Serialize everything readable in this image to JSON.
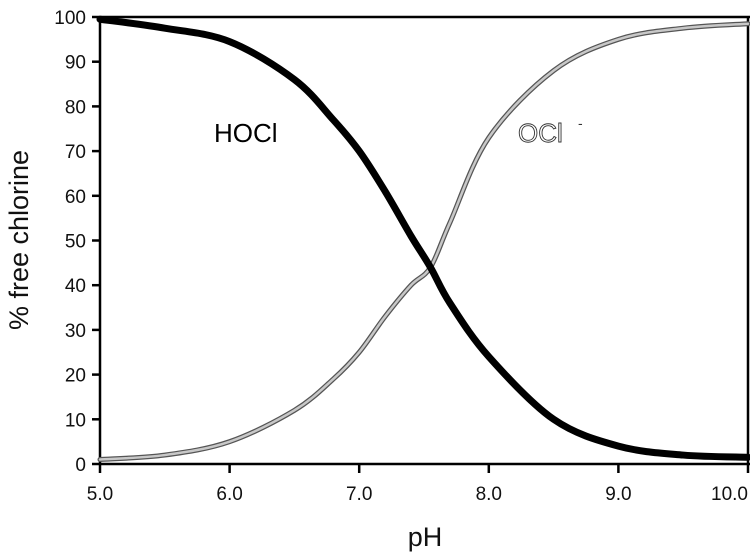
{
  "chart_data": {
    "type": "line",
    "title": "",
    "xlabel": "pH",
    "ylabel": "% free chlorine",
    "xlim": [
      5.0,
      10.0
    ],
    "ylim": [
      0,
      100
    ],
    "grid": false,
    "legend_position": "none (inline annotations)",
    "x_ticks": [
      "5.0",
      "6.0",
      "7.0",
      "8.0",
      "9.0",
      "10.0"
    ],
    "y_ticks": [
      "0",
      "10",
      "20",
      "30",
      "40",
      "50",
      "60",
      "70",
      "80",
      "90",
      "100"
    ],
    "annotations": [
      {
        "text": "HOCl",
        "x": 6.1,
        "y": 74,
        "color": "#000000"
      },
      {
        "text": "OCl",
        "superscript": "-",
        "x": 8.45,
        "y": 74,
        "color": "#555555"
      }
    ],
    "x": [
      5.0,
      5.5,
      6.0,
      6.5,
      6.8,
      7.0,
      7.2,
      7.4,
      7.55,
      7.7,
      8.0,
      8.5,
      9.0,
      9.5,
      10.0
    ],
    "series": [
      {
        "name": "HOCl",
        "color": "#000000",
        "style": "thick solid black",
        "values": [
          99.5,
          97.5,
          94.5,
          86,
          77,
          70,
          61,
          51,
          44,
          36,
          24,
          10,
          4,
          2,
          1.5
        ]
      },
      {
        "name": "OCl-",
        "color": "#999999",
        "style": "gray double-outline",
        "values": [
          1,
          2,
          5,
          12,
          19,
          25,
          33,
          40,
          44,
          54,
          73,
          88,
          95,
          97.5,
          98.5
        ]
      }
    ]
  },
  "axes": {
    "x_title": "pH",
    "y_title": "% free chlorine",
    "x_tick_labels": [
      "5.0",
      "6.0",
      "7.0",
      "8.0",
      "9.0",
      "10.0"
    ],
    "y_tick_labels": [
      "0",
      "10",
      "20",
      "30",
      "40",
      "50",
      "60",
      "70",
      "80",
      "90",
      "100"
    ]
  },
  "labels": {
    "hocl": "HOCl",
    "ocl": "OCl",
    "ocl_charge": "-"
  }
}
